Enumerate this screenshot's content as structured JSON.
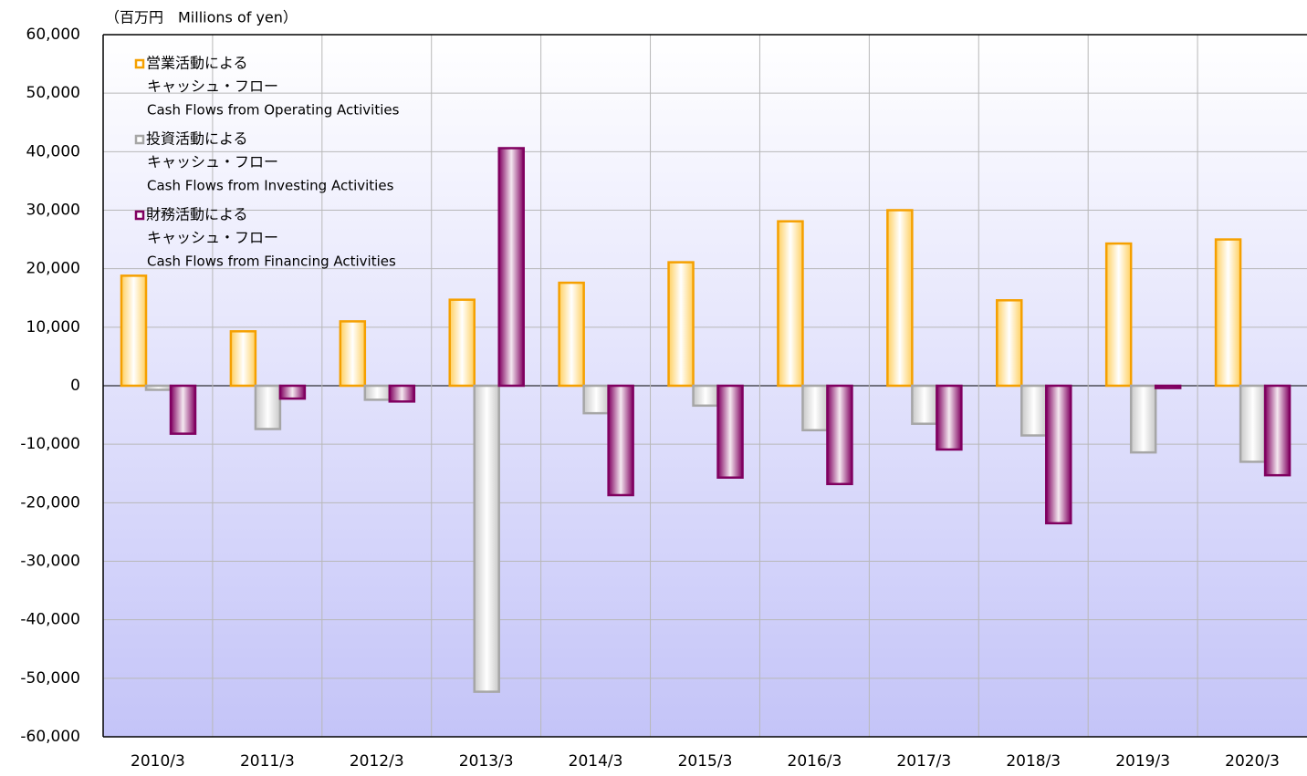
{
  "chart_data": {
    "type": "bar",
    "y_label": "（百万円　Millions of yen）",
    "categories": [
      "2010/3",
      "2011/3",
      "2012/3",
      "2013/3",
      "2014/3",
      "2015/3",
      "2016/3",
      "2017/3",
      "2018/3",
      "2019/3",
      "2020/3"
    ],
    "series": [
      {
        "name": [
          "営業活動による",
          "キャッシュ・フロー",
          "Cash Flows from Operating Activities"
        ],
        "color": "#f5a000",
        "values": [
          18800,
          9300,
          11000,
          14700,
          17600,
          21100,
          28100,
          30000,
          14600,
          24300,
          25000
        ]
      },
      {
        "name": [
          "投資活動による",
          "キャッシュ・フロー",
          "Cash Flows from Investing Activities"
        ],
        "color": "#a6a6a6",
        "values": [
          -700,
          -7400,
          -2400,
          -52300,
          -4700,
          -3400,
          -7600,
          -6500,
          -8500,
          -11400,
          -13000
        ]
      },
      {
        "name": [
          "財務活動による",
          "キャッシュ・フロー",
          "Cash Flows from Financing Activities"
        ],
        "color": "#800060",
        "values": [
          -8200,
          -2200,
          -2700,
          40600,
          -18700,
          -15700,
          -16800,
          -10900,
          -23500,
          -400,
          -15300
        ]
      }
    ],
    "ylim": [
      -60000,
      60000
    ],
    "yticks": [
      {
        "value": -60000,
        "label": "-60,000"
      },
      {
        "value": -50000,
        "label": "-50,000"
      },
      {
        "value": -40000,
        "label": "-40,000"
      },
      {
        "value": -30000,
        "label": "-30,000"
      },
      {
        "value": -20000,
        "label": "-20,000"
      },
      {
        "value": -10000,
        "label": "-10,000"
      },
      0,
      {
        "value": 10000,
        "label": "10,000"
      },
      {
        "value": 20000,
        "label": "20,000"
      },
      {
        "value": 30000,
        "label": "30,000"
      },
      {
        "value": 40000,
        "label": "40,000"
      },
      {
        "value": 50000,
        "label": "50,000"
      },
      {
        "value": 60000,
        "label": "60,000"
      }
    ],
    "grid": true,
    "legend": "top-left"
  }
}
